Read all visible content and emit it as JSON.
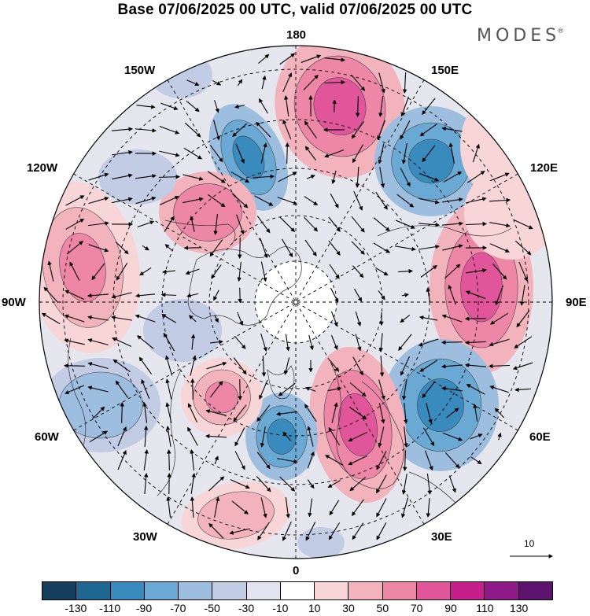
{
  "title": "Base 07/06/2025 00 UTC, valid 07/06/2025 00 UTC",
  "brand": "MODES",
  "brand_mark": "®",
  "map": {
    "projection": "north-polar-stereographic",
    "longitude_labels": [
      "180",
      "150E",
      "120E",
      "90E",
      "60E",
      "30E",
      "0",
      "30W",
      "60W",
      "90W",
      "120W",
      "150W"
    ],
    "graticule": "dashed",
    "field": "streamfunction anomaly with wind vectors",
    "reference_vector": "10"
  },
  "colorbar": {
    "colors": [
      "#163f5e",
      "#1f6690",
      "#3a8bbd",
      "#6aa9d3",
      "#9dbedf",
      "#c2cce5",
      "#e3e3ef",
      "#ffffff",
      "#f8d6d8",
      "#f2b3bd",
      "#ee86a8",
      "#e1569b",
      "#c41f8a",
      "#8e1a87",
      "#5c136e"
    ],
    "ticks": [
      "-130",
      "-110",
      "-90",
      "-70",
      "-50",
      "-30",
      "-10",
      "10",
      "30",
      "50",
      "70",
      "90",
      "110",
      "130"
    ]
  }
}
